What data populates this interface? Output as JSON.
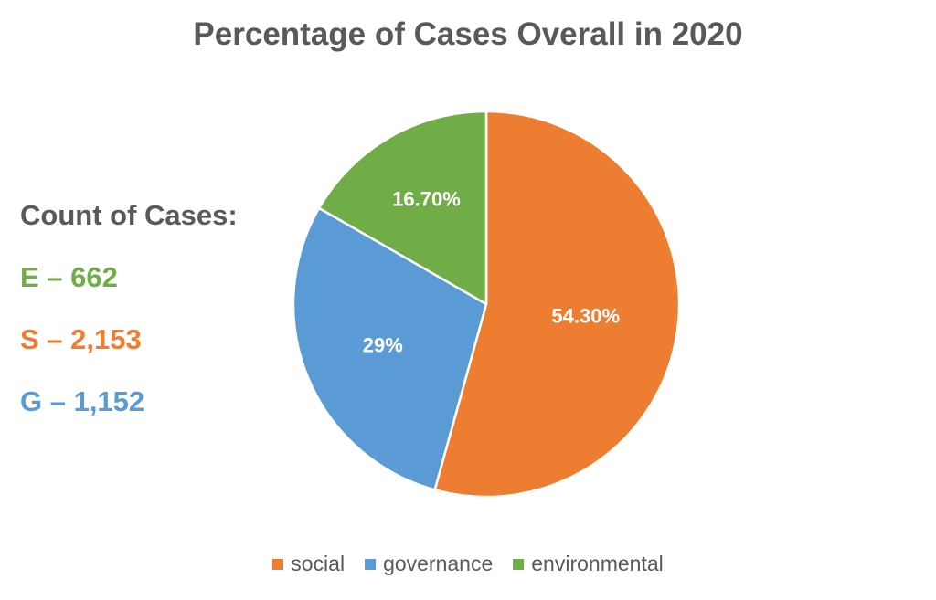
{
  "title": "Percentage of Cases Overall in 2020",
  "counts": {
    "heading": "Count of Cases:",
    "e": "E – 662",
    "s": "S – 2,153",
    "g": "G – 1,152"
  },
  "chart_data": {
    "type": "pie",
    "title": "Percentage of Cases Overall in 2020",
    "series": [
      {
        "categories": [
          "social",
          "governance",
          "environmental"
        ],
        "values": [
          54.3,
          29,
          16.7
        ],
        "labels": [
          "54.30%",
          "29%",
          "16.70%"
        ],
        "colors": [
          "#ED7D31",
          "#5B9BD5",
          "#70AD47"
        ]
      }
    ],
    "start_angle_deg": 0,
    "direction": "clockwise",
    "legend": "bottom"
  }
}
